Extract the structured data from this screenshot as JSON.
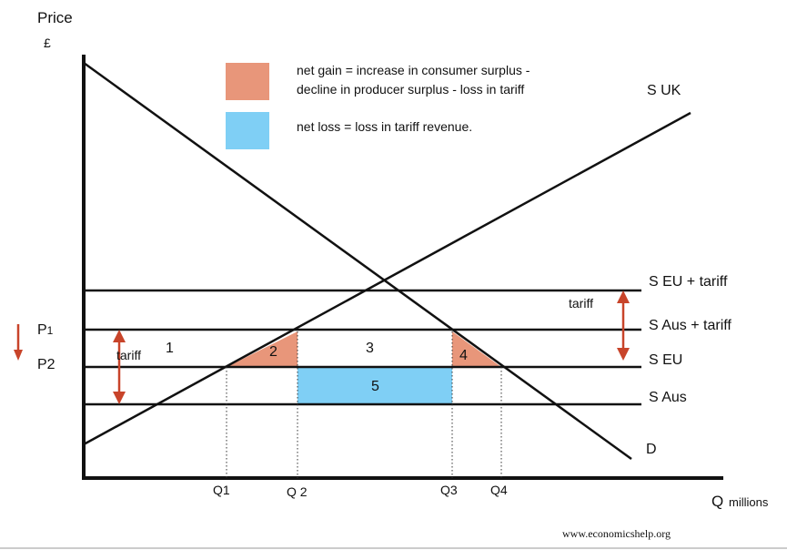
{
  "axes": {
    "y_title": "Price",
    "y_unit": "£",
    "x_title": "Q",
    "x_unit": "millions"
  },
  "legend": {
    "gain_color": "#e8967a",
    "gain_text_line1": "net gain = increase in consumer surplus -",
    "gain_text_line2": "decline in producer surplus - loss in tariff",
    "loss_color": "#7fcff5",
    "loss_text": "net loss = loss in tariff revenue."
  },
  "curves": {
    "supply_uk": "S UK",
    "demand": "D",
    "s_eu_tariff": "S EU + tariff",
    "s_aus_tariff": "S Aus + tariff",
    "s_eu": "S EU",
    "s_aus": "S Aus"
  },
  "price_labels": {
    "p1_main": "P",
    "p1_sub": "1",
    "p2": "P2"
  },
  "quantity_labels": {
    "q1": "Q1",
    "q2": "Q 2",
    "q3": "Q3",
    "q4": "Q4"
  },
  "areas": {
    "a1": "1",
    "a2": "2",
    "a3": "3",
    "a4": "4",
    "a5": "5"
  },
  "tariff_labels": {
    "left": "tariff",
    "right": "tariff"
  },
  "footer": {
    "source": "www.economicshelp.org"
  }
}
